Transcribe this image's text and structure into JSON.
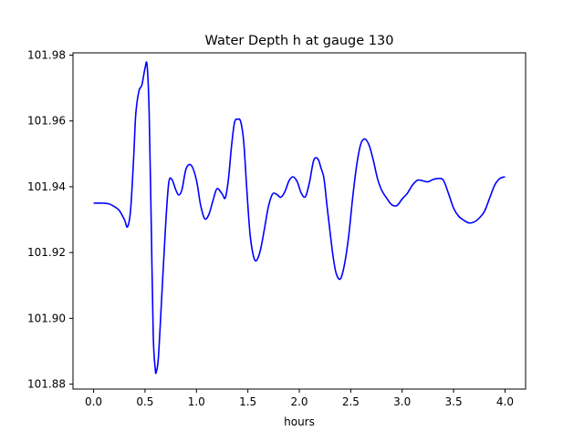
{
  "chart_data": {
    "type": "line",
    "title": "Water Depth h at gauge 130",
    "xlabel": "hours",
    "ylabel": "",
    "xlim": [
      -0.2,
      4.2
    ],
    "ylim": [
      101.8785,
      101.9807
    ],
    "xticks": [
      0.0,
      0.5,
      1.0,
      1.5,
      2.0,
      2.5,
      3.0,
      3.5,
      4.0
    ],
    "xtick_labels": [
      "0.0",
      "0.5",
      "1.0",
      "1.5",
      "2.0",
      "2.5",
      "3.0",
      "3.5",
      "4.0"
    ],
    "yticks": [
      101.88,
      101.9,
      101.92,
      101.94,
      101.96,
      101.98
    ],
    "ytick_labels": [
      "101.88",
      "101.90",
      "101.92",
      "101.94",
      "101.96",
      "101.98"
    ],
    "grid": false,
    "legend": "none",
    "series": [
      {
        "color": "#0000ff",
        "x": [
          0.0,
          0.1,
          0.15,
          0.2,
          0.25,
          0.3,
          0.33,
          0.36,
          0.39,
          0.41,
          0.44,
          0.47,
          0.5,
          0.52,
          0.54,
          0.56,
          0.58,
          0.6,
          0.61,
          0.63,
          0.66,
          0.7,
          0.73,
          0.76,
          0.8,
          0.83,
          0.86,
          0.9,
          0.95,
          1.0,
          1.04,
          1.08,
          1.12,
          1.16,
          1.2,
          1.25,
          1.28,
          1.31,
          1.34,
          1.37,
          1.4,
          1.43,
          1.46,
          1.49,
          1.52,
          1.55,
          1.58,
          1.62,
          1.66,
          1.7,
          1.74,
          1.78,
          1.82,
          1.86,
          1.9,
          1.94,
          1.98,
          2.02,
          2.06,
          2.1,
          2.14,
          2.18,
          2.21,
          2.24,
          2.27,
          2.3,
          2.33,
          2.36,
          2.4,
          2.44,
          2.48,
          2.52,
          2.56,
          2.6,
          2.64,
          2.68,
          2.72,
          2.76,
          2.8,
          2.85,
          2.9,
          2.95,
          3.0,
          3.05,
          3.1,
          3.15,
          3.2,
          3.25,
          3.3,
          3.35,
          3.4,
          3.45,
          3.5,
          3.55,
          3.6,
          3.65,
          3.7,
          3.75,
          3.8,
          3.85,
          3.9,
          3.95,
          4.0
        ],
        "y": [
          101.935,
          101.935,
          101.9348,
          101.934,
          101.9328,
          101.93,
          101.9278,
          101.933,
          101.949,
          101.962,
          101.969,
          101.971,
          101.976,
          101.977,
          101.963,
          101.93,
          101.895,
          101.8845,
          101.8838,
          101.888,
          101.905,
          101.928,
          101.941,
          101.9423,
          101.939,
          101.9375,
          101.9392,
          101.9455,
          101.9465,
          101.942,
          101.9345,
          101.9303,
          101.9315,
          101.9357,
          101.9394,
          101.9378,
          101.9366,
          101.942,
          101.952,
          101.9595,
          101.9605,
          101.9598,
          101.9535,
          101.939,
          101.926,
          101.9195,
          101.9175,
          101.9205,
          101.927,
          101.934,
          101.9378,
          101.9377,
          101.9368,
          101.9385,
          101.9418,
          101.943,
          101.9415,
          101.938,
          101.937,
          101.9415,
          101.948,
          101.9485,
          101.9458,
          101.9425,
          101.934,
          101.926,
          101.9185,
          101.9135,
          101.912,
          101.9165,
          101.925,
          101.937,
          101.947,
          101.9532,
          101.9545,
          101.9525,
          101.948,
          101.9425,
          101.939,
          101.9365,
          101.9345,
          101.9343,
          101.9363,
          101.938,
          101.9405,
          101.942,
          101.9418,
          101.9415,
          101.9422,
          101.9425,
          101.942,
          101.938,
          101.9335,
          101.931,
          101.9298,
          101.929,
          101.9293,
          101.9305,
          101.9325,
          101.9365,
          101.9405,
          101.9425,
          101.943
        ]
      }
    ]
  }
}
